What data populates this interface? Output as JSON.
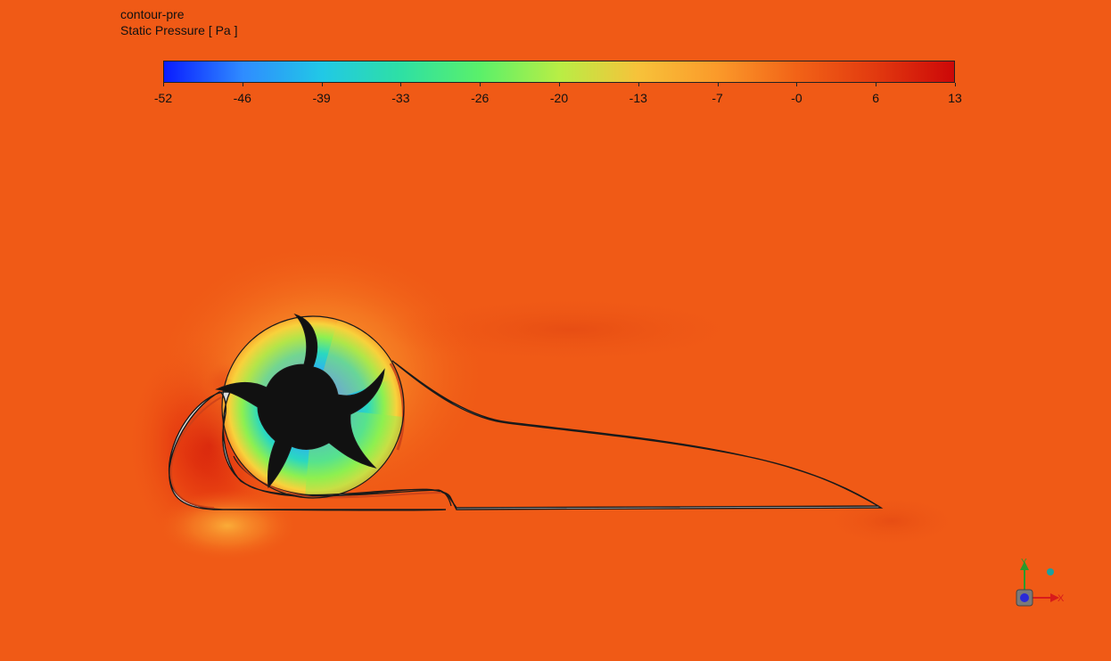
{
  "title": {
    "name": "contour-pre",
    "variable": "Static Pressure [ Pa ]"
  },
  "legend": {
    "ticks": [
      "-52",
      "-46",
      "-39",
      "-33",
      "-26",
      "-20",
      "-13",
      "-7",
      "-0",
      "6",
      "13"
    ],
    "colormap": [
      "#0a1cff",
      "#2f8cff",
      "#21c8e6",
      "#2ee0a4",
      "#5af06a",
      "#b8ee45",
      "#f7c23a",
      "#fb9a2a",
      "#f26317",
      "#e23a0f",
      "#cc0808"
    ]
  },
  "colors": {
    "background": "#f05a16",
    "body_fill": "#dcdcdc",
    "rotor_fill": "#111111",
    "outline": "#1a1a1a"
  },
  "triad": {
    "x_label": "X",
    "y_label": "Y"
  }
}
